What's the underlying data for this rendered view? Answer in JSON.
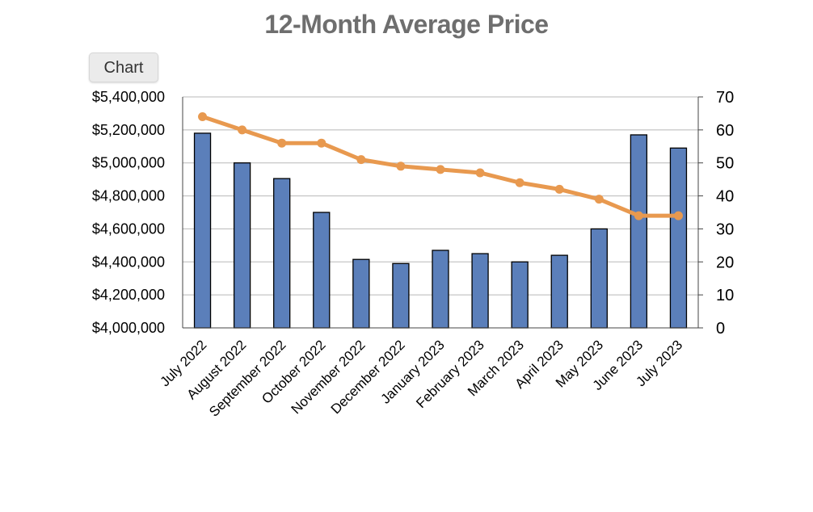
{
  "app": {
    "chart_button_label": "Chart"
  },
  "chart_data": {
    "type": "bar",
    "title": "12-Month Average Price",
    "xlabel": "",
    "ylabel": "",
    "categories": [
      "July 2022",
      "August 2022",
      "September 2022",
      "October 2022",
      "November 2022",
      "December 2022",
      "January 2023",
      "February 2023",
      "March 2023",
      "April 2023",
      "May 2023",
      "June 2023",
      "July 2023"
    ],
    "series": [
      {
        "type": "bar",
        "axis": "left",
        "color": "#5b7fba",
        "values": [
          5180000,
          5000000,
          4905000,
          4700000,
          4415000,
          4390000,
          4470000,
          4450000,
          4400000,
          4440000,
          4600000,
          5170000,
          5090000
        ]
      },
      {
        "type": "line",
        "axis": "right",
        "color": "#e8994f",
        "values": [
          64,
          60,
          56,
          56,
          51,
          49,
          48,
          47,
          44,
          42,
          39,
          34,
          34
        ]
      }
    ],
    "left_axis": {
      "min": 4000000,
      "max": 5400000,
      "step": 200000,
      "tick_labels": [
        "$4,000,000",
        "$4,200,000",
        "$4,400,000",
        "$4,600,000",
        "$4,800,000",
        "$5,000,000",
        "$5,200,000",
        "$5,400,000"
      ]
    },
    "right_axis": {
      "min": 0,
      "max": 70,
      "step": 10,
      "tick_labels": [
        "0",
        "10",
        "20",
        "30",
        "40",
        "50",
        "60",
        "70"
      ]
    },
    "grid": true,
    "legend": "none"
  }
}
